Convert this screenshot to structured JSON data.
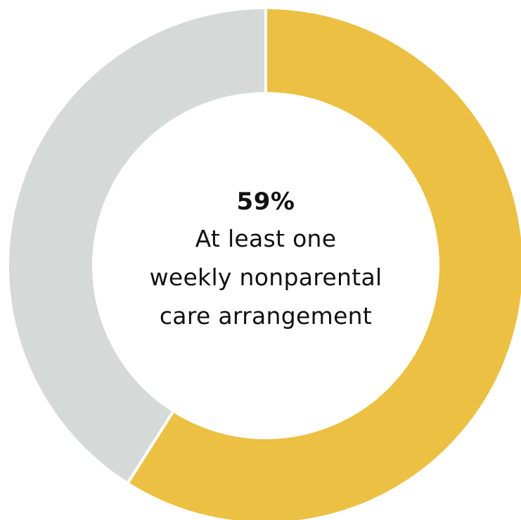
{
  "chart_data": {
    "type": "pie",
    "style": "donut",
    "slices": [
      {
        "label": "At least one weekly nonparental care arrangement",
        "value": 59,
        "color": "#ECC043"
      },
      {
        "value": 41,
        "color": "#D5D9D8"
      }
    ],
    "center_label": {
      "value_text": "59%",
      "lines": [
        "At least one",
        "weekly nonparental",
        "care arrangement"
      ]
    },
    "start_angle": "top",
    "direction": "clockwise",
    "separator_color": "#FFFFFF"
  }
}
